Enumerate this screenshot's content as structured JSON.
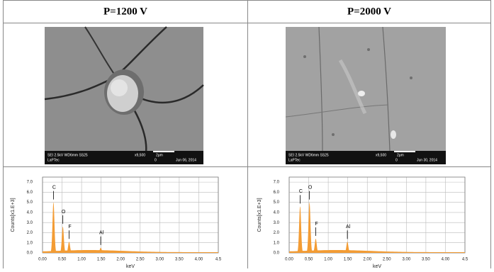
{
  "table": {
    "headers": [
      "P=1200 V",
      "P=2000 V"
    ]
  },
  "sem_images": [
    {
      "info": "SEI 2.5kV WD6mm SS25",
      "magnification": "x9,500",
      "scale": "2μm",
      "marker": "0",
      "date": "Jun 06, 2014",
      "lab": "LaPTec"
    },
    {
      "info": "SEI 2.5kV WD6mm SS25",
      "magnification": "x9,500",
      "scale": "2μm",
      "marker": "0",
      "date": "Jun 30, 2014",
      "lab": "LaPTec"
    }
  ],
  "spectra": [
    {
      "y_label": "Counts[x1.E+3]",
      "x_label": "keV",
      "color": "#f39c34",
      "xlim": [
        0,
        4.5
      ],
      "ylim": [
        0,
        7.5
      ],
      "xticks": [
        {
          "value": 0,
          "label": "0.00"
        },
        {
          "value": 0.5,
          "label": "0.50"
        },
        {
          "value": 1,
          "label": "1.00"
        },
        {
          "value": 1.5,
          "label": "1.50"
        },
        {
          "value": 2,
          "label": "2.00"
        },
        {
          "value": 2.5,
          "label": "2.50"
        },
        {
          "value": 3,
          "label": "3.00"
        },
        {
          "value": 3.5,
          "label": "3.50"
        },
        {
          "value": 4,
          "label": "4.00"
        },
        4.5
      ],
      "yticks": [
        {
          "value": 0,
          "label": "0.0"
        },
        {
          "value": 1,
          "label": "1.0"
        },
        {
          "value": 2,
          "label": "2.0"
        },
        {
          "value": 3,
          "label": "3.0"
        },
        {
          "value": 4,
          "label": "4.0"
        },
        {
          "value": 5,
          "label": "5.0"
        },
        {
          "value": 6,
          "label": "6.0"
        },
        {
          "value": 7,
          "label": "7.0"
        }
      ],
      "peaks": [
        {
          "label": "C",
          "x": 0.28,
          "y": 5.0
        },
        {
          "label": "O",
          "x": 0.52,
          "y": 2.6
        },
        {
          "label": "F",
          "x": 0.68,
          "y": 1.1
        },
        {
          "label": "Al",
          "x": 1.49,
          "y": 0.5
        }
      ]
    },
    {
      "y_label": "Counts[x1.E+3]",
      "x_label": "keV",
      "color": "#f39c34",
      "xlim": [
        0,
        4.5
      ],
      "ylim": [
        0,
        7.5
      ],
      "xticks": [
        {
          "value": 0,
          "label": "0.00"
        },
        {
          "value": 0.5,
          "label": "0.50"
        },
        {
          "value": 1,
          "label": "1.00"
        },
        {
          "value": 1.5,
          "label": "1.50"
        },
        {
          "value": 2,
          "label": "2.00"
        },
        {
          "value": 2.5,
          "label": "2.50"
        },
        {
          "value": 3,
          "label": "3.00"
        },
        {
          "value": 3.5,
          "label": "3.50"
        },
        {
          "value": 4,
          "label": "4.00"
        },
        4.5
      ],
      "yticks": [
        {
          "value": 0,
          "label": "0.0"
        },
        {
          "value": 1,
          "label": "1.0"
        },
        {
          "value": 2,
          "label": "2.0"
        },
        {
          "value": 3,
          "label": "3.0"
        },
        {
          "value": 4,
          "label": "4.0"
        },
        {
          "value": 5,
          "label": "5.0"
        },
        {
          "value": 6,
          "label": "6.0"
        },
        {
          "value": 7,
          "label": "7.0"
        }
      ],
      "peaks": [
        {
          "label": "C",
          "x": 0.28,
          "y": 4.6
        },
        {
          "label": "O",
          "x": 0.52,
          "y": 5.0
        },
        {
          "label": "F",
          "x": 0.68,
          "y": 1.4
        },
        {
          "label": "Al",
          "x": 1.49,
          "y": 1.1
        }
      ]
    }
  ]
}
